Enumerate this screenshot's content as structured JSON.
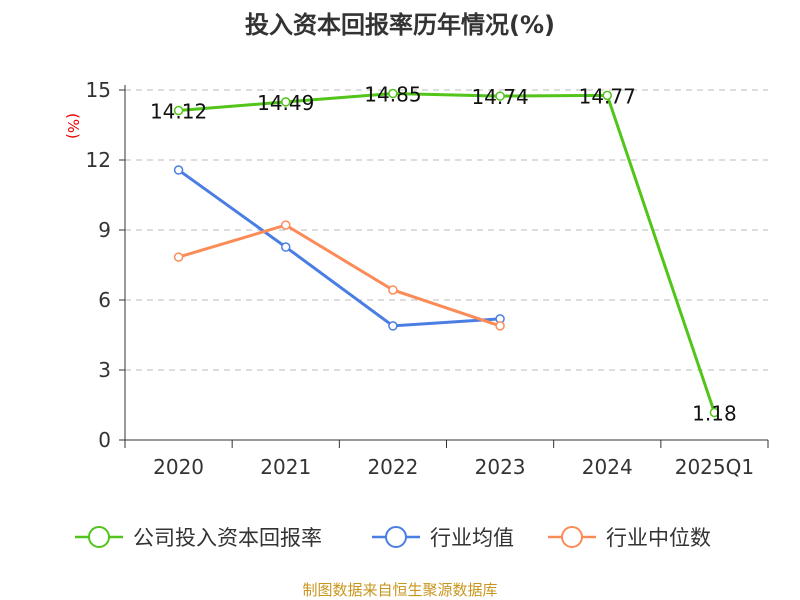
{
  "chart_data": {
    "type": "line",
    "title": "投入资本回报率历年情况(%)",
    "ylabel": "(%)",
    "ylim": [
      0,
      15
    ],
    "yticks": [
      0,
      3,
      6,
      9,
      12,
      15
    ],
    "grid": true,
    "legend_position": "bottom",
    "categories": [
      "2020",
      "2021",
      "2022",
      "2023",
      "2024",
      "2025Q1"
    ],
    "series": [
      {
        "name": "公司投入资本回报率",
        "color": "#52c41a",
        "values": [
          14.12,
          14.49,
          14.85,
          14.74,
          14.77,
          1.18
        ],
        "labels": [
          "14.12",
          "14.49",
          "14.85",
          "14.74",
          "14.77",
          "1.18"
        ]
      },
      {
        "name": "行业均值",
        "color": "#4a7ee3",
        "values": [
          11.57,
          8.27,
          4.89,
          5.19,
          null,
          null
        ]
      },
      {
        "name": "行业中位数",
        "color": "#fb8c58",
        "values": [
          7.84,
          9.21,
          6.43,
          4.89,
          null,
          null
        ]
      }
    ]
  },
  "footer": "制图数据来自恒生聚源数据库"
}
